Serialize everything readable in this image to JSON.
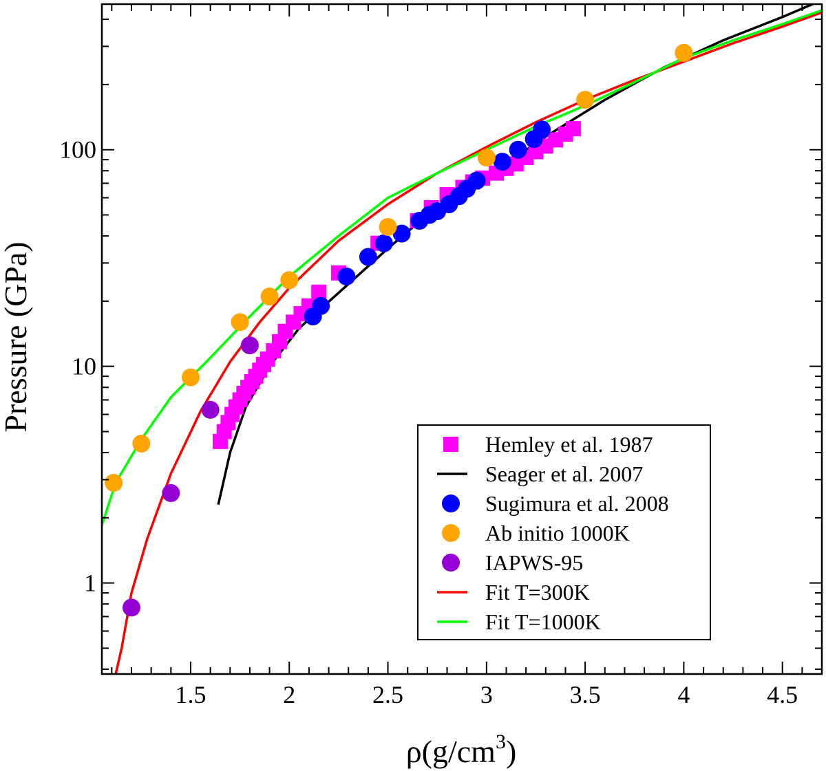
{
  "chart_data": {
    "type": "scatter",
    "title": "",
    "xlabel_main": "ρ(g/cm",
    "xlabel_sup": "3",
    "xlabel_close": ")",
    "ylabel": "Pressure (GPa)",
    "xlim": [
      1.05,
      4.7
    ],
    "ylim": [
      0.38,
      470
    ],
    "yscale": "log",
    "x_ticks": [
      {
        "value": 1.5,
        "label": "1.5"
      },
      {
        "value": 2.0,
        "label": "2"
      },
      {
        "value": 2.5,
        "label": "2.5"
      },
      {
        "value": 3.0,
        "label": "3"
      },
      {
        "value": 3.5,
        "label": "3.5"
      },
      {
        "value": 4.0,
        "label": "4"
      },
      {
        "value": 4.5,
        "label": "4.5"
      }
    ],
    "y_ticks": [
      {
        "value": 1,
        "label": "1"
      },
      {
        "value": 10,
        "label": "10"
      },
      {
        "value": 100,
        "label": "100"
      }
    ],
    "legend_position": "bottom-right",
    "series": [
      {
        "name": "Hemley et al. 1987",
        "kind": "scatter",
        "marker": "square",
        "color": "#ff00ff",
        "x": [
          1.65,
          1.67,
          1.69,
          1.71,
          1.73,
          1.75,
          1.77,
          1.79,
          1.81,
          1.83,
          1.85,
          1.87,
          1.89,
          1.92,
          1.95,
          1.98,
          2.02,
          2.06,
          2.1,
          2.15,
          2.25,
          2.45,
          2.65,
          2.72,
          2.8,
          2.88,
          2.93,
          2.98,
          3.05,
          3.1,
          3.15,
          3.2,
          3.25,
          3.3,
          3.35,
          3.4,
          3.44
        ],
        "y": [
          4.5,
          5.0,
          5.5,
          6.0,
          6.5,
          7.0,
          7.5,
          8.0,
          8.5,
          9.0,
          9.6,
          10.2,
          10.8,
          11.8,
          13.0,
          14.5,
          16.0,
          17.5,
          19.0,
          22.0,
          27.0,
          37.0,
          47.0,
          54.0,
          62.0,
          67.0,
          71.0,
          74.0,
          78.0,
          82.0,
          86.0,
          92.0,
          98.0,
          104.0,
          111.0,
          118.0,
          125.0
        ]
      },
      {
        "name": "Seager et al. 2007",
        "kind": "line",
        "color": "#000000",
        "x": [
          1.64,
          1.7,
          1.78,
          1.9,
          2.05,
          2.3,
          2.5,
          2.7,
          3.0,
          3.3,
          3.6,
          3.9,
          4.2,
          4.5,
          4.7
        ],
        "y": [
          2.3,
          4.0,
          6.5,
          10.0,
          15.0,
          24.0,
          35.0,
          50.0,
          75.0,
          115.0,
          170.0,
          240.0,
          320.0,
          410.0,
          490.0
        ]
      },
      {
        "name": "Sugimura et al. 2008",
        "kind": "scatter",
        "marker": "circle",
        "color": "#0000ff",
        "x": [
          2.12,
          2.16,
          2.29,
          2.4,
          2.48,
          2.57,
          2.66,
          2.71,
          2.75,
          2.81,
          2.86,
          2.9,
          2.95,
          3.08,
          3.16,
          3.24,
          3.28
        ],
        "y": [
          17.0,
          19.0,
          26.0,
          32.0,
          37.0,
          41.0,
          47.0,
          50.0,
          52.0,
          56.0,
          61.0,
          66.0,
          72.0,
          88.0,
          100.0,
          112.0,
          124.0
        ]
      },
      {
        "name": "Ab initio 1000K",
        "kind": "scatter",
        "marker": "circle",
        "color": "#ffa500",
        "x": [
          1.11,
          1.25,
          1.5,
          1.75,
          1.9,
          2.0,
          2.5,
          3.0,
          3.5,
          4.0
        ],
        "y": [
          2.9,
          4.4,
          8.9,
          16.0,
          21.0,
          25.0,
          44.0,
          92.0,
          170.0,
          280.0
        ]
      },
      {
        "name": "IAPWS-95",
        "kind": "scatter",
        "marker": "circle",
        "color": "#9400d3",
        "x": [
          1.2,
          1.4,
          1.6,
          1.8
        ],
        "y": [
          0.77,
          2.6,
          6.3,
          12.5
        ]
      },
      {
        "name": "Fit T=300K",
        "kind": "line",
        "color": "#ff0000",
        "x": [
          1.12,
          1.15,
          1.2,
          1.28,
          1.4,
          1.55,
          1.7,
          1.85,
          2.0,
          2.25,
          2.5,
          2.75,
          3.0,
          3.25,
          3.5,
          3.75,
          4.0,
          4.25,
          4.5,
          4.7
        ],
        "y": [
          0.38,
          0.5,
          0.9,
          1.6,
          3.2,
          6.2,
          10.5,
          16.0,
          23.0,
          38.0,
          56.0,
          78.0,
          103.0,
          134.0,
          170.0,
          210.0,
          255.0,
          310.0,
          370.0,
          430.0
        ]
      },
      {
        "name": "Fit T=1000K",
        "kind": "line",
        "color": "#00ff00",
        "x": [
          1.05,
          1.12,
          1.25,
          1.4,
          1.58,
          1.8,
          2.0,
          2.25,
          2.5,
          2.75,
          3.0,
          3.25,
          3.5,
          3.75,
          4.0,
          4.25,
          4.5,
          4.7
        ],
        "y": [
          1.85,
          2.9,
          4.6,
          7.2,
          10.5,
          17.0,
          26.0,
          40.0,
          60.0,
          78.0,
          100.0,
          128.0,
          160.0,
          205.0,
          265.0,
          320.0,
          380.0,
          440.0
        ]
      }
    ]
  }
}
